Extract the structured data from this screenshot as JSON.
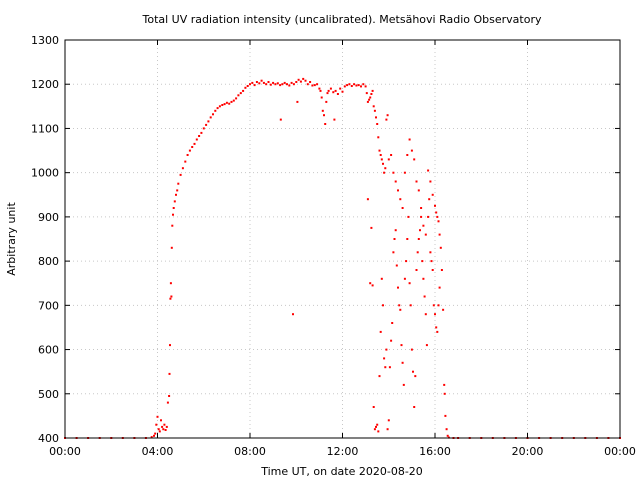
{
  "chart_data": {
    "type": "scatter",
    "title": "Total UV radiation intensity (uncalibrated). Metsähovi Radio Observatory",
    "xlabel": "Time UT, on date 2020-08-20",
    "ylabel": "Arbitrary unit",
    "xlim": [
      0,
      24
    ],
    "ylim": [
      400,
      1300
    ],
    "x_ticks": [
      {
        "value": 0,
        "label": "00:00"
      },
      {
        "value": 4,
        "label": "04:00"
      },
      {
        "value": 8,
        "label": "08:00"
      },
      {
        "value": 12,
        "label": "12:00"
      },
      {
        "value": 16,
        "label": "16:00"
      },
      {
        "value": 20,
        "label": "20:00"
      },
      {
        "value": 24,
        "label": "00:00"
      }
    ],
    "y_ticks": [
      {
        "value": 400,
        "label": "400"
      },
      {
        "value": 500,
        "label": "500"
      },
      {
        "value": 600,
        "label": "600"
      },
      {
        "value": 700,
        "label": "700"
      },
      {
        "value": 800,
        "label": "800"
      },
      {
        "value": 900,
        "label": "900"
      },
      {
        "value": 1000,
        "label": "1000"
      },
      {
        "value": 1100,
        "label": "1100"
      },
      {
        "value": 1200,
        "label": "1200"
      },
      {
        "value": 1300,
        "label": "1300"
      }
    ],
    "grid": true,
    "marker_color": "#ff0000",
    "series": [
      {
        "points": [
          [
            0.0,
            400
          ],
          [
            0.5,
            400
          ],
          [
            1.0,
            400
          ],
          [
            1.5,
            400
          ],
          [
            2.0,
            400
          ],
          [
            2.5,
            400
          ],
          [
            3.0,
            400
          ],
          [
            3.5,
            400
          ],
          [
            3.75,
            402
          ],
          [
            3.85,
            405
          ],
          [
            3.9,
            410
          ],
          [
            3.95,
            430
          ],
          [
            4.0,
            448
          ],
          [
            4.05,
            420
          ],
          [
            4.1,
            415
          ],
          [
            4.15,
            440
          ],
          [
            4.2,
            425
          ],
          [
            4.25,
            420
          ],
          [
            4.3,
            430
          ],
          [
            4.35,
            418
          ],
          [
            4.4,
            425
          ],
          [
            4.45,
            480
          ],
          [
            4.5,
            495
          ],
          [
            4.52,
            545
          ],
          [
            4.54,
            610
          ],
          [
            4.56,
            715
          ],
          [
            4.58,
            750
          ],
          [
            4.6,
            720
          ],
          [
            4.62,
            830
          ],
          [
            4.64,
            880
          ],
          [
            4.67,
            905
          ],
          [
            4.7,
            920
          ],
          [
            4.75,
            935
          ],
          [
            4.8,
            950
          ],
          [
            4.85,
            960
          ],
          [
            4.9,
            975
          ],
          [
            5.0,
            995
          ],
          [
            5.1,
            1010
          ],
          [
            5.2,
            1025
          ],
          [
            5.3,
            1040
          ],
          [
            5.4,
            1050
          ],
          [
            5.5,
            1058
          ],
          [
            5.6,
            1065
          ],
          [
            5.7,
            1075
          ],
          [
            5.8,
            1083
          ],
          [
            5.9,
            1090
          ],
          [
            6.0,
            1100
          ],
          [
            6.1,
            1108
          ],
          [
            6.2,
            1116
          ],
          [
            6.3,
            1125
          ],
          [
            6.4,
            1132
          ],
          [
            6.5,
            1140
          ],
          [
            6.6,
            1146
          ],
          [
            6.7,
            1150
          ],
          [
            6.8,
            1153
          ],
          [
            6.9,
            1155
          ],
          [
            7.0,
            1158
          ],
          [
            7.1,
            1156
          ],
          [
            7.2,
            1160
          ],
          [
            7.3,
            1163
          ],
          [
            7.4,
            1168
          ],
          [
            7.5,
            1175
          ],
          [
            7.6,
            1180
          ],
          [
            7.7,
            1185
          ],
          [
            7.8,
            1192
          ],
          [
            7.9,
            1196
          ],
          [
            8.0,
            1200
          ],
          [
            8.1,
            1203
          ],
          [
            8.2,
            1198
          ],
          [
            8.3,
            1205
          ],
          [
            8.4,
            1202
          ],
          [
            8.5,
            1208
          ],
          [
            8.6,
            1203
          ],
          [
            8.7,
            1200
          ],
          [
            8.8,
            1205
          ],
          [
            8.9,
            1199
          ],
          [
            9.0,
            1203
          ],
          [
            9.1,
            1200
          ],
          [
            9.2,
            1202
          ],
          [
            9.3,
            1198
          ],
          [
            9.33,
            1120
          ],
          [
            9.4,
            1200
          ],
          [
            9.5,
            1203
          ],
          [
            9.6,
            1200
          ],
          [
            9.7,
            1197
          ],
          [
            9.8,
            1203
          ],
          [
            9.86,
            680
          ],
          [
            9.9,
            1200
          ],
          [
            10.0,
            1205
          ],
          [
            10.05,
            1160
          ],
          [
            10.1,
            1210
          ],
          [
            10.2,
            1206
          ],
          [
            10.3,
            1212
          ],
          [
            10.4,
            1208
          ],
          [
            10.5,
            1200
          ],
          [
            10.6,
            1205
          ],
          [
            10.7,
            1197
          ],
          [
            10.8,
            1198
          ],
          [
            10.9,
            1200
          ],
          [
            11.0,
            1190
          ],
          [
            11.05,
            1185
          ],
          [
            11.1,
            1170
          ],
          [
            11.15,
            1140
          ],
          [
            11.2,
            1130
          ],
          [
            11.25,
            1110
          ],
          [
            11.3,
            1160
          ],
          [
            11.35,
            1180
          ],
          [
            11.4,
            1185
          ],
          [
            11.5,
            1190
          ],
          [
            11.6,
            1182
          ],
          [
            11.65,
            1120
          ],
          [
            11.7,
            1185
          ],
          [
            11.8,
            1178
          ],
          [
            11.9,
            1190
          ],
          [
            12.0,
            1183
          ],
          [
            12.1,
            1195
          ],
          [
            12.2,
            1198
          ],
          [
            12.3,
            1200
          ],
          [
            12.4,
            1196
          ],
          [
            12.5,
            1200
          ],
          [
            12.6,
            1197
          ],
          [
            12.7,
            1198
          ],
          [
            12.8,
            1195
          ],
          [
            12.9,
            1200
          ],
          [
            13.0,
            1195
          ],
          [
            13.05,
            1180
          ],
          [
            13.1,
            1160
          ],
          [
            13.15,
            1165
          ],
          [
            13.2,
            1170
          ],
          [
            13.25,
            1178
          ],
          [
            13.3,
            1185
          ],
          [
            13.35,
            1150
          ],
          [
            13.4,
            1140
          ],
          [
            13.45,
            1125
          ],
          [
            13.5,
            1110
          ],
          [
            13.55,
            1080
          ],
          [
            13.6,
            1050
          ],
          [
            13.65,
            1040
          ],
          [
            13.7,
            1030
          ],
          [
            13.75,
            1020
          ],
          [
            13.8,
            1000
          ],
          [
            13.85,
            1010
          ],
          [
            13.9,
            1120
          ],
          [
            13.95,
            1130
          ],
          [
            14.0,
            1030
          ],
          [
            14.1,
            1040
          ],
          [
            14.2,
            1000
          ],
          [
            14.3,
            980
          ],
          [
            14.4,
            960
          ],
          [
            14.5,
            940
          ],
          [
            14.6,
            920
          ],
          [
            14.7,
            1000
          ],
          [
            14.8,
            1040
          ],
          [
            14.9,
            1075
          ],
          [
            15.0,
            1050
          ],
          [
            15.1,
            1030
          ],
          [
            15.2,
            980
          ],
          [
            15.3,
            960
          ],
          [
            15.4,
            900
          ],
          [
            15.5,
            880
          ],
          [
            15.6,
            860
          ],
          [
            15.7,
            1005
          ],
          [
            15.8,
            980
          ],
          [
            15.9,
            950
          ],
          [
            16.0,
            925
          ],
          [
            16.05,
            910
          ],
          [
            16.1,
            900
          ],
          [
            16.15,
            890
          ],
          [
            16.2,
            860
          ],
          [
            16.25,
            830
          ],
          [
            13.1,
            940
          ],
          [
            13.2,
            750
          ],
          [
            13.25,
            875
          ],
          [
            13.3,
            745
          ],
          [
            13.35,
            470
          ],
          [
            13.4,
            420
          ],
          [
            13.45,
            425
          ],
          [
            13.5,
            430
          ],
          [
            13.55,
            415
          ],
          [
            13.6,
            540
          ],
          [
            13.65,
            640
          ],
          [
            13.7,
            760
          ],
          [
            13.75,
            700
          ],
          [
            13.8,
            580
          ],
          [
            13.85,
            560
          ],
          [
            13.9,
            600
          ],
          [
            13.95,
            420
          ],
          [
            14.0,
            440
          ],
          [
            14.05,
            560
          ],
          [
            14.1,
            620
          ],
          [
            14.15,
            660
          ],
          [
            14.2,
            820
          ],
          [
            14.25,
            850
          ],
          [
            14.3,
            870
          ],
          [
            14.35,
            790
          ],
          [
            14.4,
            740
          ],
          [
            14.45,
            700
          ],
          [
            14.5,
            690
          ],
          [
            14.55,
            610
          ],
          [
            14.6,
            570
          ],
          [
            14.65,
            520
          ],
          [
            14.7,
            760
          ],
          [
            14.75,
            800
          ],
          [
            14.8,
            850
          ],
          [
            14.85,
            900
          ],
          [
            14.9,
            750
          ],
          [
            14.95,
            700
          ],
          [
            15.0,
            600
          ],
          [
            15.05,
            550
          ],
          [
            15.1,
            470
          ],
          [
            15.15,
            540
          ],
          [
            15.2,
            780
          ],
          [
            15.25,
            820
          ],
          [
            15.3,
            850
          ],
          [
            15.35,
            870
          ],
          [
            15.4,
            920
          ],
          [
            15.45,
            800
          ],
          [
            15.5,
            760
          ],
          [
            15.55,
            720
          ],
          [
            15.6,
            680
          ],
          [
            15.65,
            610
          ],
          [
            15.7,
            900
          ],
          [
            15.75,
            940
          ],
          [
            15.8,
            820
          ],
          [
            15.85,
            800
          ],
          [
            15.9,
            780
          ],
          [
            15.95,
            700
          ],
          [
            16.0,
            680
          ],
          [
            16.05,
            650
          ],
          [
            16.1,
            640
          ],
          [
            16.15,
            700
          ],
          [
            16.2,
            740
          ],
          [
            16.3,
            780
          ],
          [
            16.35,
            690
          ],
          [
            16.4,
            520
          ],
          [
            16.42,
            500
          ],
          [
            16.45,
            450
          ],
          [
            16.5,
            420
          ],
          [
            16.55,
            405
          ],
          [
            16.6,
            401
          ],
          [
            16.8,
            400
          ],
          [
            17.0,
            400
          ],
          [
            17.5,
            400
          ],
          [
            18.0,
            400
          ],
          [
            18.5,
            400
          ],
          [
            19.0,
            400
          ],
          [
            19.5,
            400
          ],
          [
            20.0,
            400
          ],
          [
            20.5,
            400
          ],
          [
            21.0,
            400
          ],
          [
            21.5,
            400
          ],
          [
            22.0,
            400
          ],
          [
            22.5,
            400
          ],
          [
            23.0,
            400
          ],
          [
            23.5,
            400
          ],
          [
            24.0,
            400
          ]
        ]
      }
    ]
  }
}
